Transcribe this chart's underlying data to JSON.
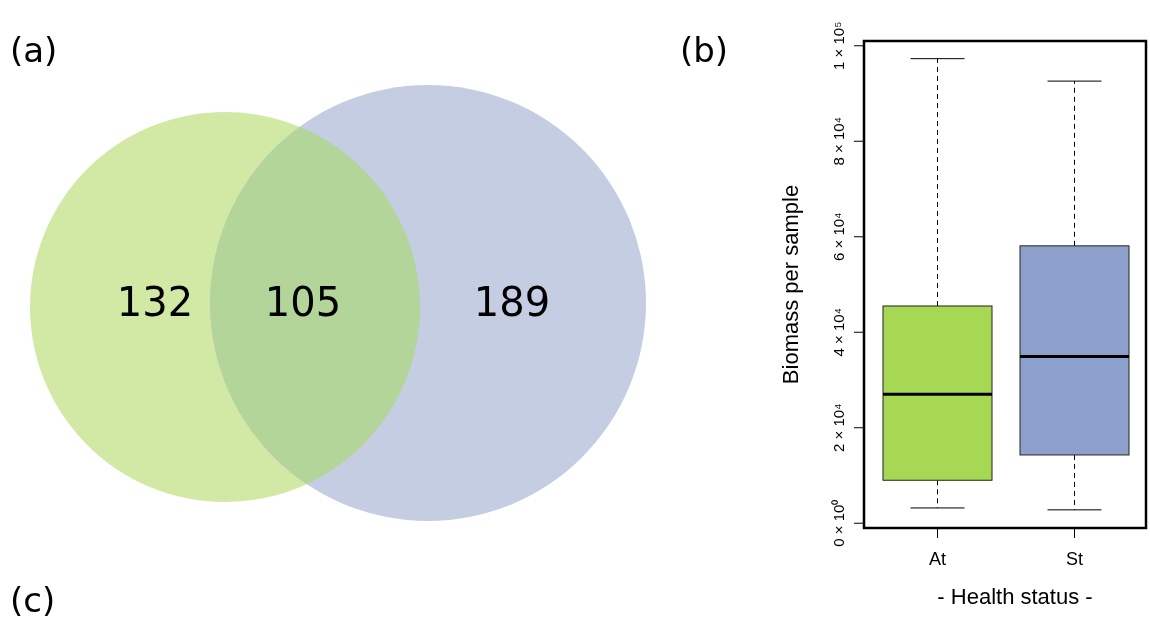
{
  "chart_data": [
    {
      "type": "other",
      "title": "(a)",
      "categories": [
        null,
        null,
        null
      ],
      "values": [
        132,
        105,
        189
      ],
      "colors": [
        "#d2e9a5",
        "#b4d59a",
        "#c5cde2"
      ],
      "data_labels": true,
      "annotations": [
        "(c)"
      ]
    },
    {
      "type": "box",
      "title": "(b)",
      "categories": [
        "At",
        "St"
      ],
      "xlabel": "- Health status -",
      "ylabel": "Biomass per sample",
      "colors": [
        "#a6d854",
        "#8da0cb"
      ],
      "boxes": [
        {
          "low": 3200,
          "q1": 9000,
          "median": 27000,
          "q3": 45500,
          "high": 97300
        },
        {
          "low": 2800,
          "q1": 14300,
          "median": 34900,
          "q3": 58100,
          "high": 92600
        }
      ],
      "ylim": [
        -1000,
        101000
      ],
      "yticks": [
        {
          "value": 0,
          "label": "0 × 10⁰"
        },
        {
          "value": 20000,
          "label": "2 × 10⁴"
        },
        {
          "value": 40000,
          "label": "4 × 10⁴"
        },
        {
          "value": 60000,
          "label": "6 × 10⁴"
        },
        {
          "value": 80000,
          "label": "8 × 10⁴"
        },
        {
          "value": 100000,
          "label": "1 × 10⁵"
        }
      ],
      "grid": false
    }
  ]
}
